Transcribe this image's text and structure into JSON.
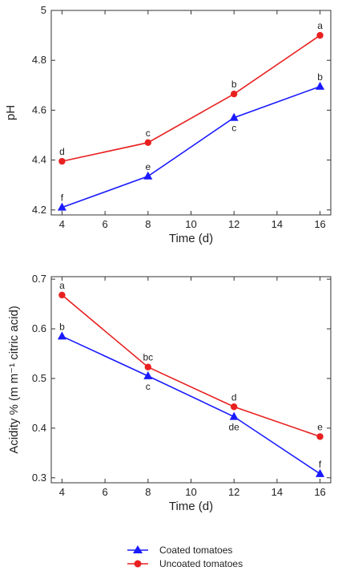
{
  "chart_data": [
    {
      "type": "line",
      "xlabel": "Time (d)",
      "ylabel": "pH",
      "xlim": [
        3.5,
        16.5
      ],
      "ylim": [
        4.18,
        5.0
      ],
      "xticks": [
        4,
        6,
        8,
        10,
        12,
        14,
        16
      ],
      "yticks": [
        4.2,
        4.4,
        4.6,
        4.8,
        5
      ],
      "x": [
        4,
        8,
        12,
        16
      ],
      "series": [
        {
          "name": "Coated tomatoes",
          "color": "#1a1aff",
          "marker": "triangle",
          "values": [
            4.21,
            4.335,
            4.57,
            4.695
          ],
          "labels": [
            "f",
            "e",
            "c",
            "b"
          ],
          "label_pos": [
            "above",
            "above",
            "below",
            "above"
          ]
        },
        {
          "name": "Uncoated tomatoes",
          "color": "#e82020",
          "marker": "circle",
          "values": [
            4.395,
            4.47,
            4.665,
            4.9
          ],
          "labels": [
            "d",
            "c",
            "b",
            "a"
          ],
          "label_pos": [
            "above",
            "above",
            "above",
            "above"
          ]
        }
      ]
    },
    {
      "type": "line",
      "xlabel": "Time (d)",
      "ylabel": "Acidity % (m m⁻¹ citric acid)",
      "xlim": [
        3.5,
        16.5
      ],
      "ylim": [
        0.29,
        0.705
      ],
      "xticks": [
        4,
        6,
        8,
        10,
        12,
        14,
        16
      ],
      "yticks": [
        0.3,
        0.4,
        0.5,
        0.6,
        0.7
      ],
      "x": [
        4,
        8,
        12,
        16
      ],
      "series": [
        {
          "name": "Coated tomatoes",
          "color": "#1a1aff",
          "marker": "triangle",
          "values": [
            0.585,
            0.505,
            0.423,
            0.308
          ],
          "labels": [
            "b",
            "c",
            "de",
            "f"
          ],
          "label_pos": [
            "above",
            "below",
            "below",
            "above"
          ]
        },
        {
          "name": "Uncoated tomatoes",
          "color": "#e82020",
          "marker": "circle",
          "values": [
            0.668,
            0.523,
            0.443,
            0.383
          ],
          "labels": [
            "a",
            "bc",
            "d",
            "e"
          ],
          "label_pos": [
            "above",
            "above",
            "above",
            "above"
          ]
        }
      ]
    }
  ],
  "legend": {
    "items": [
      {
        "label": "Coated tomatoes",
        "color": "#1a1aff",
        "marker": "triangle"
      },
      {
        "label": "Uncoated tomatoes",
        "color": "#e82020",
        "marker": "circle"
      }
    ]
  }
}
